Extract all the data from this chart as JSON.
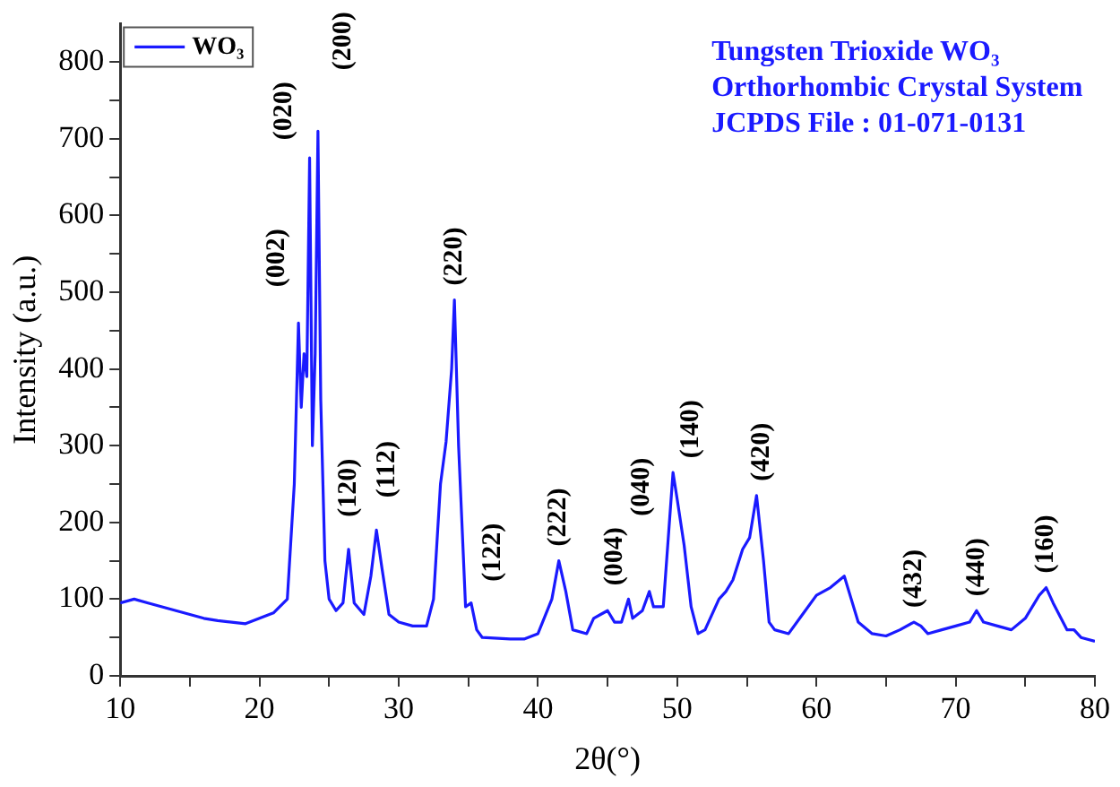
{
  "chart_data": {
    "type": "line",
    "xlabel": "2θ(°)",
    "ylabel": "Intensity (a.u.)",
    "legend": "top left",
    "grid": false,
    "marker": "none",
    "line_style": "solid",
    "xlim": [
      10,
      80
    ],
    "ylim": [
      0,
      850
    ],
    "xticks": [
      10,
      {
        "value": 15,
        "label": null
      },
      20,
      {
        "value": 25,
        "label": null
      },
      30,
      {
        "value": 35,
        "label": null
      },
      40,
      {
        "value": 45,
        "label": null
      },
      50,
      {
        "value": 55,
        "label": null
      },
      60,
      {
        "value": 65,
        "label": null
      },
      70,
      {
        "value": 75,
        "label": null
      },
      80
    ],
    "yticks": [
      0,
      {
        "value": 50,
        "label": null
      },
      100,
      {
        "value": 150,
        "label": null
      },
      200,
      {
        "value": 250,
        "label": null
      },
      300,
      {
        "value": 350,
        "label": null
      },
      400,
      {
        "value": 450,
        "label": null
      },
      500,
      {
        "value": 550,
        "label": null
      },
      600,
      {
        "value": 650,
        "label": null
      },
      700,
      {
        "value": 750,
        "label": null
      },
      800
    ],
    "series": [
      {
        "name": "WO₃",
        "color": "#1a1aff",
        "x": [
          10,
          11,
          12,
          13,
          14,
          15,
          16,
          17,
          18,
          19,
          20,
          21,
          22,
          22.5,
          22.8,
          23.0,
          23.2,
          23.4,
          23.6,
          23.8,
          24.0,
          24.2,
          24.4,
          24.7,
          25,
          25.5,
          26,
          26.4,
          26.8,
          27.5,
          28,
          28.4,
          28.8,
          29.3,
          30,
          31,
          32,
          32.5,
          33.0,
          33.4,
          33.8,
          34.0,
          34.3,
          34.8,
          35.2,
          35.6,
          36,
          38,
          39,
          40,
          41,
          41.5,
          42,
          42.5,
          43.5,
          44,
          44.5,
          45,
          45.5,
          46,
          46.5,
          46.8,
          47.5,
          48,
          48.3,
          49,
          49.7,
          50,
          50.5,
          51,
          51.5,
          52,
          53,
          53.5,
          54,
          54.7,
          55.2,
          55.7,
          56.2,
          56.6,
          57,
          58,
          59,
          60,
          61,
          62,
          62.5,
          63,
          64,
          65,
          66,
          67,
          67.5,
          68,
          69,
          70,
          71,
          71.5,
          72,
          73,
          74,
          75,
          76,
          76.5,
          77,
          78,
          78.5,
          79,
          80
        ],
        "values": [
          95,
          100,
          95,
          90,
          85,
          80,
          75,
          72,
          70,
          68,
          75,
          82,
          100,
          250,
          460,
          350,
          420,
          390,
          675,
          300,
          420,
          710,
          360,
          150,
          100,
          85,
          95,
          165,
          95,
          80,
          130,
          190,
          140,
          80,
          70,
          65,
          65,
          100,
          250,
          305,
          400,
          490,
          300,
          90,
          95,
          60,
          50,
          48,
          48,
          55,
          100,
          150,
          110,
          60,
          55,
          75,
          80,
          85,
          70,
          70,
          100,
          75,
          85,
          110,
          90,
          90,
          265,
          230,
          170,
          90,
          55,
          60,
          100,
          110,
          125,
          165,
          180,
          235,
          150,
          70,
          60,
          55,
          80,
          105,
          115,
          130,
          100,
          70,
          55,
          52,
          60,
          70,
          65,
          55,
          60,
          65,
          70,
          85,
          70,
          65,
          60,
          75,
          105,
          115,
          95,
          60,
          60,
          50,
          45
        ]
      }
    ],
    "annotations": [
      {
        "text": "(002)",
        "x": 22.8,
        "y": 460
      },
      {
        "text": "(020)",
        "x": 23.6,
        "y": 675
      },
      {
        "text": "(200)",
        "x": 24.2,
        "y": 710
      },
      {
        "text": "(120)",
        "x": 26.4,
        "y": 165
      },
      {
        "text": "(112)",
        "x": 28.4,
        "y": 190
      },
      {
        "text": "(220)",
        "x": 34.0,
        "y": 490
      },
      {
        "text": "(122)",
        "x": 35.2,
        "y": 95
      },
      {
        "text": "(222)",
        "x": 41.5,
        "y": 150
      },
      {
        "text": "(004)",
        "x": 45,
        "y": 85
      },
      {
        "text": "(040)",
        "x": 48,
        "y": 110
      },
      {
        "text": "(140)",
        "x": 49.7,
        "y": 265
      },
      {
        "text": "(420)",
        "x": 55.7,
        "y": 235
      },
      {
        "text": "(432)",
        "x": 67,
        "y": 70
      },
      {
        "text": "(440)",
        "x": 71.5,
        "y": 85
      },
      {
        "text": "(160)",
        "x": 76.5,
        "y": 115
      },
      "Tungsten Trioxide WO₃",
      "Orthorhombic Crystal System",
      "JCPDS File : 01-071-0131"
    ]
  }
}
